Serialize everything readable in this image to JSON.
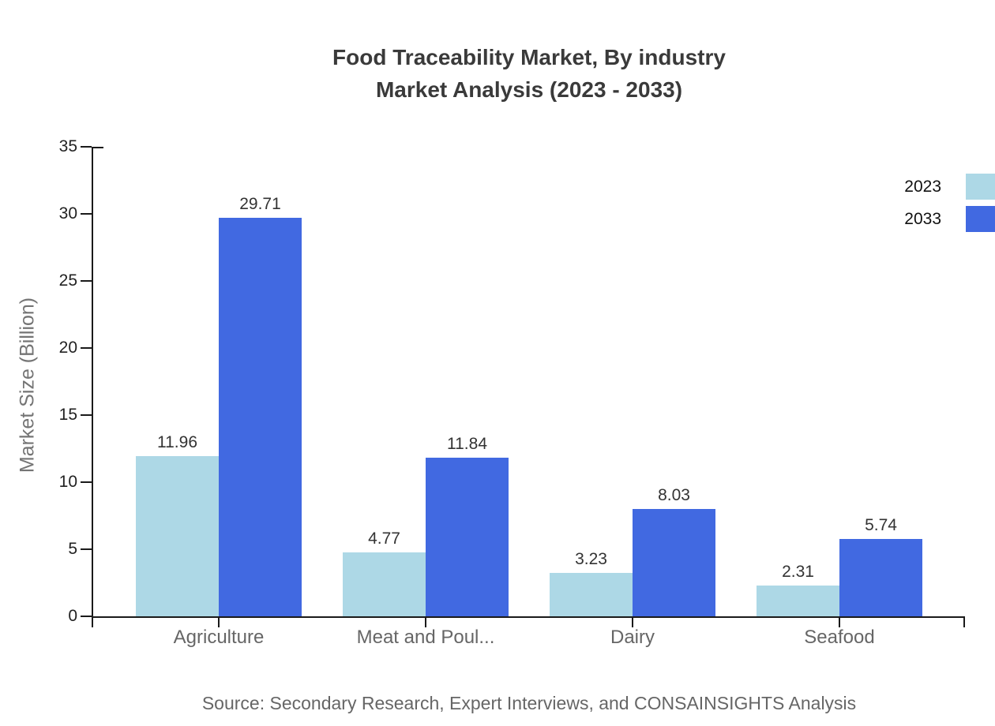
{
  "title": {
    "line1": "Food Traceability Market, By industry",
    "line2": "Market Analysis (2023 - 2033)"
  },
  "source": "Source: Secondary Research, Expert Interviews, and CONSAINSIGHTS Analysis",
  "colors": {
    "series_2023": "#ADD8E6",
    "series_2033": "#4169E1",
    "axis": "#1a1a1a",
    "title_text": "#3a3a3a",
    "value_label_text": "#333333",
    "category_label_text": "#666666",
    "axis_title_text": "#747474",
    "tick_label_text": "#222222",
    "legend_text": "#111111",
    "source_text": "#666666",
    "background": "#ffffff"
  },
  "chart_data": {
    "type": "bar",
    "title": "Food Traceability Market, By industry Market Analysis (2023 - 2033)",
    "categories": [
      "Agriculture",
      "Meat and Poul...",
      "Dairy",
      "Seafood"
    ],
    "series": [
      {
        "name": "2023",
        "color": "#ADD8E6",
        "values": [
          11.96,
          4.77,
          3.23,
          2.31
        ]
      },
      {
        "name": "2033",
        "color": "#4169E1",
        "values": [
          29.71,
          11.84,
          8.03,
          5.74
        ]
      }
    ],
    "xlabel": "",
    "ylabel": "Market Size (Billion)",
    "ylim": [
      0,
      35
    ],
    "yticks": [
      0,
      5,
      10,
      15,
      20,
      25,
      30,
      35
    ],
    "grid": false,
    "legend_position": "top-right",
    "value_labels": true,
    "value_label_decimals": 2
  }
}
